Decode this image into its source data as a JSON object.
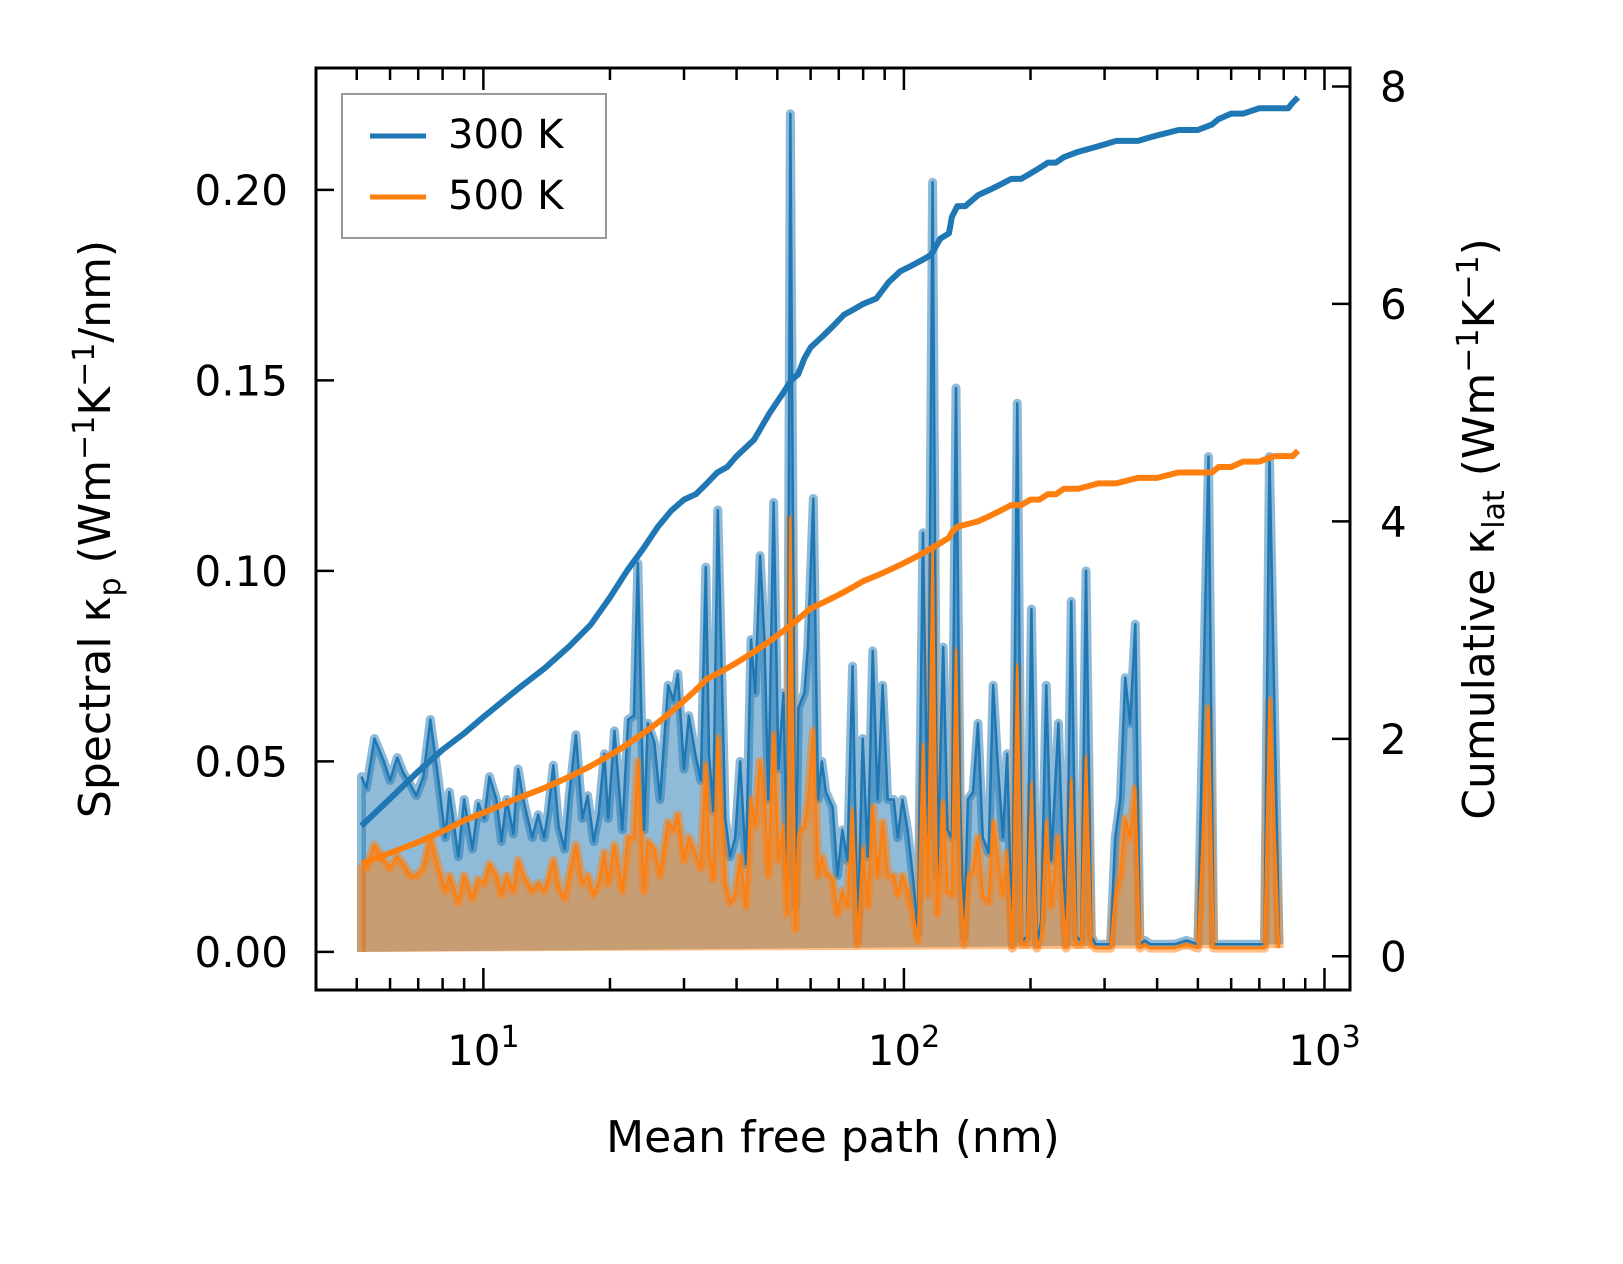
{
  "chart_data": {
    "type": "area",
    "title": "",
    "xlabel": "Mean free path (nm)",
    "ylabel_left": {
      "main": "Spectral κ",
      "sub": "p",
      "unit_open": " (Wm",
      "sup1": "−1",
      "mid": "K",
      "sup2": "−1",
      "tail": "/nm)"
    },
    "ylabel_right": {
      "main": "Cumulative κ",
      "sub": "lat",
      "unit_open": " (Wm",
      "sup1": "−1",
      "mid": "K",
      "sup2": "−1",
      "tail": ")"
    },
    "xscale": "log",
    "xlim": [
      4.0,
      1150
    ],
    "ylim_left": [
      -0.01,
      0.232
    ],
    "ylim_right": [
      -0.31,
      8.17
    ],
    "x_ticks": [
      {
        "value": 10,
        "base": "10",
        "exp": "1"
      },
      {
        "value": 100,
        "base": "10",
        "exp": "2"
      },
      {
        "value": 1000,
        "base": "10",
        "exp": "3"
      }
    ],
    "y_ticks_left": [
      {
        "value": 0.0,
        "label": "0.00"
      },
      {
        "value": 0.05,
        "label": "0.05"
      },
      {
        "value": 0.1,
        "label": "0.10"
      },
      {
        "value": 0.15,
        "label": "0.15"
      },
      {
        "value": 0.2,
        "label": "0.20"
      }
    ],
    "y_ticks_right": [
      {
        "value": 0,
        "label": "0"
      },
      {
        "value": 2,
        "label": "2"
      },
      {
        "value": 4,
        "label": "4"
      },
      {
        "value": 6,
        "label": "6"
      },
      {
        "value": 8,
        "label": "8"
      }
    ],
    "grid": false,
    "legend": {
      "placement": "top-left",
      "entries": [
        {
          "label": "300 K",
          "color": "#1f77b4"
        },
        {
          "label": "500 K",
          "color": "#ff7f0e"
        }
      ]
    },
    "colors": {
      "blue": "#1f77b4",
      "orange": "#ff7f0e",
      "blue_fill": "#8cb8da",
      "overlap_fill": "#c49a6c"
    },
    "spectral_x": [
      5.13,
      5.27,
      5.51,
      5.8,
      6.0,
      6.24,
      6.45,
      6.7,
      6.93,
      7.2,
      7.48,
      7.82,
      8.12,
      8.3,
      8.72,
      9.0,
      9.42,
      9.73,
      10.05,
      10.34,
      10.74,
      11.04,
      11.36,
      11.78,
      12.1,
      12.44,
      13.07,
      13.5,
      13.95,
      14.27,
      14.67,
      15.1,
      15.6,
      16.0,
      16.6,
      17.2,
      17.7,
      18.3,
      18.8,
      19.4,
      19.8,
      20.5,
      21.4,
      22.1,
      22.8,
      23.3,
      24.1,
      24.6,
      25.5,
      26.3,
      27.5,
      28.3,
      29.0,
      30.0,
      30.8,
      31.9,
      32.9,
      33.8,
      34.4,
      35.2,
      36.1,
      37.6,
      38.6,
      39.7,
      40.8,
      42.1,
      43.3,
      44.3,
      45.5,
      46.6,
      47.6,
      49.0,
      50.3,
      51.7,
      52.8,
      53.7,
      55.2,
      56.1,
      58.0,
      59.1,
      60.9,
      62.5,
      63.8,
      65.2,
      67.7,
      69.5,
      71.4,
      73.4,
      75.5,
      77.6,
      79.8,
      82.0,
      84.3,
      86.6,
      89.0,
      91.5,
      94.6,
      96.7,
      99.2,
      102,
      105,
      108,
      111,
      114,
      117,
      120,
      124,
      127,
      130,
      133,
      136,
      139,
      142,
      146,
      150,
      154,
      159,
      163,
      167,
      172,
      176,
      181,
      186,
      191,
      196,
      201,
      207,
      212,
      218,
      224,
      228,
      233,
      238,
      243,
      250,
      257,
      264,
      271,
      279,
      286,
      294,
      302,
      310,
      318,
      327,
      336,
      345,
      355,
      364,
      374,
      385,
      395,
      406,
      417,
      440,
      470,
      500,
      530,
      545,
      560,
      575,
      590,
      610,
      630,
      645,
      660,
      680,
      700,
      720,
      740,
      780,
      830,
      850,
      865
    ],
    "spectral_300K": [
      0.046,
      0.043,
      0.056,
      0.05,
      0.045,
      0.051,
      0.047,
      0.044,
      0.041,
      0.046,
      0.061,
      0.045,
      0.03,
      0.042,
      0.025,
      0.04,
      0.027,
      0.039,
      0.035,
      0.046,
      0.04,
      0.029,
      0.04,
      0.031,
      0.048,
      0.04,
      0.03,
      0.036,
      0.03,
      0.037,
      0.049,
      0.033,
      0.027,
      0.041,
      0.057,
      0.035,
      0.041,
      0.029,
      0.036,
      0.052,
      0.035,
      0.058,
      0.032,
      0.061,
      0.062,
      0.102,
      0.032,
      0.06,
      0.055,
      0.04,
      0.07,
      0.066,
      0.073,
      0.048,
      0.062,
      0.052,
      0.045,
      0.101,
      0.052,
      0.037,
      0.116,
      0.035,
      0.025,
      0.03,
      0.05,
      0.023,
      0.082,
      0.068,
      0.104,
      0.082,
      0.04,
      0.118,
      0.048,
      0.068,
      0.02,
      0.22,
      0.012,
      0.064,
      0.068,
      0.08,
      0.119,
      0.04,
      0.05,
      0.042,
      0.038,
      0.02,
      0.032,
      0.024,
      0.075,
      0.003,
      0.056,
      0.025,
      0.079,
      0.04,
      0.07,
      0.04,
      0.04,
      0.03,
      0.04,
      0.032,
      0.02,
      0.005,
      0.11,
      0.03,
      0.202,
      0.02,
      0.08,
      0.032,
      0.03,
      0.148,
      0.04,
      0.004,
      0.04,
      0.042,
      0.06,
      0.03,
      0.026,
      0.07,
      0.05,
      0.03,
      0.052,
      0.002,
      0.144,
      0.003,
      0.004,
      0.09,
      0.002,
      0.008,
      0.07,
      0.024,
      0.04,
      0.06,
      0.03,
      0.002,
      0.092,
      0.004,
      0.003,
      0.1,
      0.004,
      0.002,
      0.002,
      0.002,
      0.002,
      0.03,
      0.04,
      0.072,
      0.06,
      0.086,
      0.002,
      0.003,
      0.002,
      0.002,
      0.002,
      0.002,
      0.002,
      0.003,
      0.002,
      0.13,
      0.002,
      0.002,
      0.002,
      0.002,
      0.002,
      0.002,
      0.002,
      0.002,
      0.002,
      0.002,
      0.002,
      0.13,
      0.002
    ],
    "spectral_500K": [
      0.022,
      0.022,
      0.028,
      0.024,
      0.022,
      0.025,
      0.023,
      0.02,
      0.02,
      0.022,
      0.03,
      0.022,
      0.016,
      0.02,
      0.013,
      0.02,
      0.014,
      0.019,
      0.018,
      0.023,
      0.02,
      0.015,
      0.02,
      0.016,
      0.024,
      0.02,
      0.016,
      0.018,
      0.016,
      0.019,
      0.024,
      0.017,
      0.014,
      0.02,
      0.028,
      0.018,
      0.02,
      0.015,
      0.018,
      0.026,
      0.018,
      0.028,
      0.016,
      0.03,
      0.03,
      0.05,
      0.016,
      0.029,
      0.027,
      0.02,
      0.034,
      0.032,
      0.036,
      0.024,
      0.03,
      0.026,
      0.022,
      0.049,
      0.026,
      0.019,
      0.056,
      0.018,
      0.013,
      0.015,
      0.025,
      0.012,
      0.04,
      0.033,
      0.05,
      0.04,
      0.02,
      0.057,
      0.024,
      0.033,
      0.01,
      0.114,
      0.006,
      0.031,
      0.033,
      0.039,
      0.058,
      0.02,
      0.025,
      0.021,
      0.019,
      0.01,
      0.016,
      0.012,
      0.037,
      0.002,
      0.027,
      0.012,
      0.038,
      0.02,
      0.034,
      0.02,
      0.02,
      0.015,
      0.02,
      0.016,
      0.01,
      0.003,
      0.054,
      0.015,
      0.106,
      0.01,
      0.039,
      0.016,
      0.015,
      0.079,
      0.02,
      0.002,
      0.02,
      0.021,
      0.03,
      0.015,
      0.013,
      0.034,
      0.025,
      0.015,
      0.026,
      0.001,
      0.075,
      0.002,
      0.002,
      0.044,
      0.001,
      0.004,
      0.034,
      0.012,
      0.02,
      0.03,
      0.015,
      0.001,
      0.045,
      0.002,
      0.002,
      0.051,
      0.002,
      0.001,
      0.001,
      0.001,
      0.001,
      0.015,
      0.02,
      0.035,
      0.03,
      0.043,
      0.001,
      0.002,
      0.001,
      0.001,
      0.001,
      0.001,
      0.001,
      0.002,
      0.001,
      0.064,
      0.001,
      0.001,
      0.001,
      0.001,
      0.001,
      0.001,
      0.001,
      0.001,
      0.001,
      0.001,
      0.001,
      0.066,
      0.001
    ],
    "cumulative_x": [
      5.13,
      6,
      7,
      8,
      9,
      10,
      12,
      14,
      16,
      18,
      20,
      22,
      24,
      26,
      28,
      30,
      32,
      34,
      36,
      38,
      40,
      44,
      48,
      52,
      54,
      56,
      58,
      60,
      64,
      68,
      72,
      76,
      80,
      86,
      92,
      98,
      104,
      110,
      116,
      122,
      128,
      130,
      134,
      140,
      150,
      160,
      170,
      180,
      190,
      200,
      210,
      220,
      230,
      240,
      260,
      290,
      320,
      360,
      400,
      450,
      500,
      540,
      560,
      600,
      640,
      700,
      760,
      820,
      840,
      865
    ],
    "cumulative_300K": [
      1.2,
      1.45,
      1.7,
      1.9,
      2.05,
      2.2,
      2.45,
      2.65,
      2.85,
      3.05,
      3.3,
      3.55,
      3.75,
      3.95,
      4.1,
      4.2,
      4.25,
      4.35,
      4.45,
      4.5,
      4.6,
      4.75,
      5.0,
      5.2,
      5.3,
      5.35,
      5.5,
      5.6,
      5.7,
      5.8,
      5.9,
      5.95,
      6.0,
      6.05,
      6.2,
      6.3,
      6.35,
      6.4,
      6.45,
      6.6,
      6.65,
      6.8,
      6.9,
      6.9,
      7.0,
      7.05,
      7.1,
      7.15,
      7.15,
      7.2,
      7.25,
      7.3,
      7.3,
      7.35,
      7.4,
      7.45,
      7.5,
      7.5,
      7.55,
      7.6,
      7.6,
      7.65,
      7.7,
      7.75,
      7.75,
      7.8,
      7.8,
      7.8,
      7.85,
      7.9
    ],
    "cumulative_500K": [
      0.85,
      0.95,
      1.05,
      1.15,
      1.25,
      1.32,
      1.45,
      1.55,
      1.65,
      1.75,
      1.85,
      1.95,
      2.05,
      2.15,
      2.25,
      2.35,
      2.45,
      2.55,
      2.6,
      2.65,
      2.7,
      2.8,
      2.9,
      3.0,
      3.05,
      3.1,
      3.15,
      3.2,
      3.25,
      3.3,
      3.35,
      3.4,
      3.45,
      3.5,
      3.55,
      3.6,
      3.65,
      3.7,
      3.75,
      3.8,
      3.85,
      3.9,
      3.95,
      3.97,
      4.0,
      4.05,
      4.1,
      4.15,
      4.15,
      4.2,
      4.2,
      4.25,
      4.25,
      4.3,
      4.3,
      4.35,
      4.35,
      4.4,
      4.4,
      4.45,
      4.45,
      4.45,
      4.5,
      4.5,
      4.55,
      4.55,
      4.6,
      4.6,
      4.6,
      4.65
    ]
  }
}
